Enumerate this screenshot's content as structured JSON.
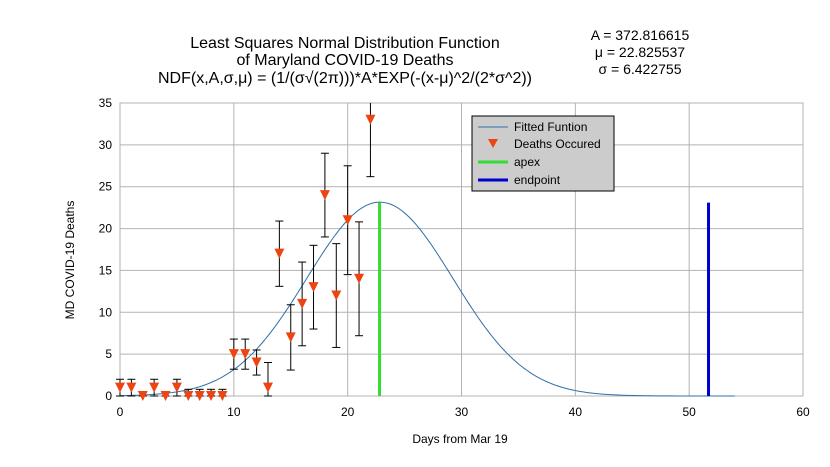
{
  "chart_data": {
    "type": "scatter",
    "title_lines": [
      "Least Squares Normal Distribution Function",
      "of Maryland COVID-19 Deaths",
      "NDF(x,A,σ,μ) = (1/(σ√(2π)))*A*EXP(-(x-μ)^2/(2*σ^2))"
    ],
    "parameters": [
      "A = 372.816615",
      "μ = 22.825537",
      "σ = 6.422755"
    ],
    "fit": {
      "A": 372.816615,
      "mu": 22.825537,
      "sigma": 6.422755,
      "x_start": 0,
      "x_end": 54
    },
    "xlabel": "Days from Mar 19",
    "ylabel": "MD COVID-19 Deaths",
    "xlim": [
      0,
      60
    ],
    "ylim": [
      0,
      35
    ],
    "xticks": [
      0,
      10,
      20,
      30,
      40,
      50,
      60
    ],
    "yticks": [
      0,
      5,
      10,
      15,
      20,
      25,
      30,
      35
    ],
    "grid": true,
    "legend_position": "top-right",
    "legend": [
      {
        "label": "Fitted Funtion",
        "kind": "line",
        "color": "#2f6fa7"
      },
      {
        "label": "Deaths Occured",
        "kind": "marker",
        "color": "#ee4411"
      },
      {
        "label": "apex",
        "kind": "line",
        "color": "#33dd33"
      },
      {
        "label": "endpoint",
        "kind": "line",
        "color": "#0000cc"
      }
    ],
    "series": [
      {
        "name": "Deaths Occured",
        "x": [
          0,
          1,
          2,
          3,
          4,
          5,
          6,
          7,
          8,
          9,
          10,
          11,
          12,
          13,
          14,
          15,
          16,
          17,
          18,
          19,
          20,
          21,
          22
        ],
        "y": [
          1,
          1,
          0,
          1,
          0,
          1,
          0,
          0,
          0,
          0,
          5,
          5,
          4,
          1,
          17,
          7,
          11,
          13,
          24,
          12,
          21,
          14,
          33
        ],
        "err": [
          1,
          1,
          0.5,
          1,
          0.5,
          1,
          0.8,
          0.8,
          0.8,
          0.8,
          1.8,
          1.8,
          1.5,
          3,
          3.9,
          3.9,
          5,
          5,
          5,
          6.2,
          6.5,
          6.8,
          6.8
        ]
      }
    ],
    "apex": {
      "x": 22.8,
      "y_top": 23.1
    },
    "endpoint": {
      "x": 51.7,
      "y_top": 23.1
    }
  }
}
